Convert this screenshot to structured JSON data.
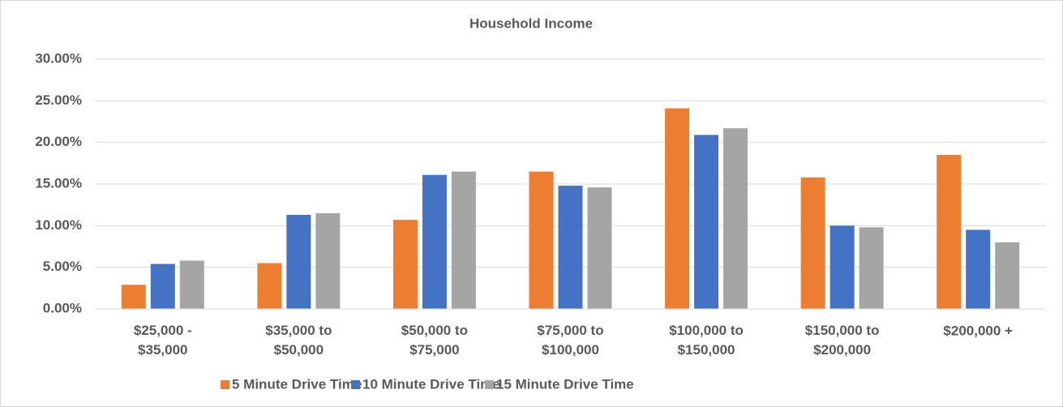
{
  "chart_data": {
    "type": "bar",
    "title": "Household Income",
    "categories": [
      "$25,000 -\n$35,000",
      "$35,000 to\n$50,000",
      "$50,000 to\n$75,000",
      "$75,000 to\n$100,000",
      "$100,000 to\n$150,000",
      "$150,000 to\n$200,000",
      "$200,000 +"
    ],
    "series": [
      {
        "name": "5 Minute Drive Time",
        "color": "#ED7D31",
        "values": [
          2.9,
          5.5,
          10.7,
          16.5,
          24.1,
          15.8,
          18.5
        ]
      },
      {
        "name": "10 Minute Drive Time",
        "color": "#4472C4",
        "values": [
          5.4,
          11.3,
          16.1,
          14.8,
          20.9,
          10.0,
          9.5
        ]
      },
      {
        "name": "15 Minute Drive Time",
        "color": "#A5A5A5",
        "values": [
          5.8,
          11.5,
          16.5,
          14.6,
          21.7,
          9.8,
          8.0
        ]
      }
    ],
    "ylim": [
      0,
      30
    ],
    "yticks": [
      {
        "value": 0,
        "label": "0.00%"
      },
      {
        "value": 5,
        "label": "5.00%"
      },
      {
        "value": 10,
        "label": "10.00%"
      },
      {
        "value": 15,
        "label": "15.00%"
      },
      {
        "value": 20,
        "label": "20.00%"
      },
      {
        "value": 25,
        "label": "25.00%"
      },
      {
        "value": 30,
        "label": "30.00%"
      }
    ],
    "grid": true,
    "legend": "bottom"
  }
}
